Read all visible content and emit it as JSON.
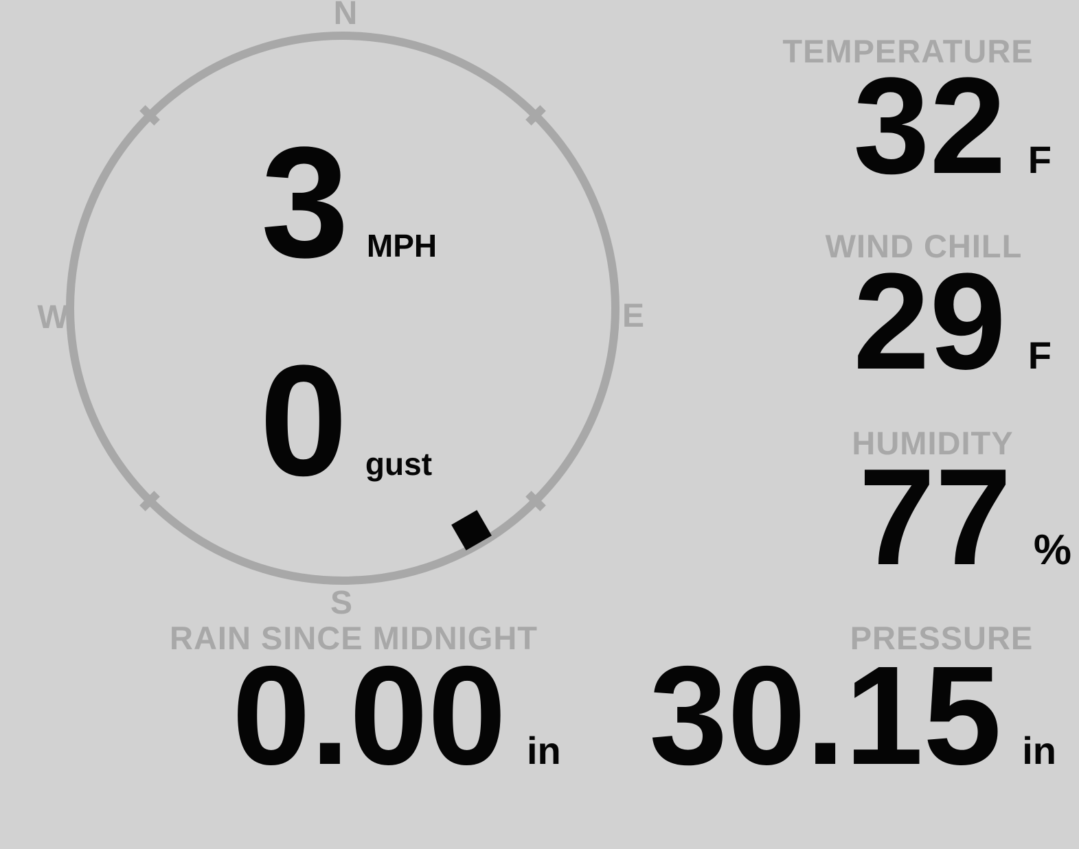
{
  "colors": {
    "background": "#d2d2d2",
    "muted": "#a8a8a8",
    "value": "#050505"
  },
  "compass": {
    "cardinal_n": "N",
    "cardinal_e": "E",
    "cardinal_s": "S",
    "cardinal_w": "W",
    "wind_speed": "3",
    "wind_speed_unit": "MPH",
    "wind_gust": "0",
    "wind_gust_unit": "gust",
    "wind_direction_deg": 150
  },
  "metrics": {
    "temperature": {
      "label": "TEMPERATURE",
      "value": "32",
      "unit": "F"
    },
    "wind_chill": {
      "label": "WIND CHILL",
      "value": "29",
      "unit": "F"
    },
    "humidity": {
      "label": "HUMIDITY",
      "value": "77",
      "unit": "%"
    },
    "rain_since_midnight": {
      "label": "RAIN SINCE MIDNIGHT",
      "value": "0.00",
      "unit": "in"
    },
    "pressure": {
      "label": "PRESSURE",
      "value": "30.15",
      "unit": "in"
    }
  }
}
